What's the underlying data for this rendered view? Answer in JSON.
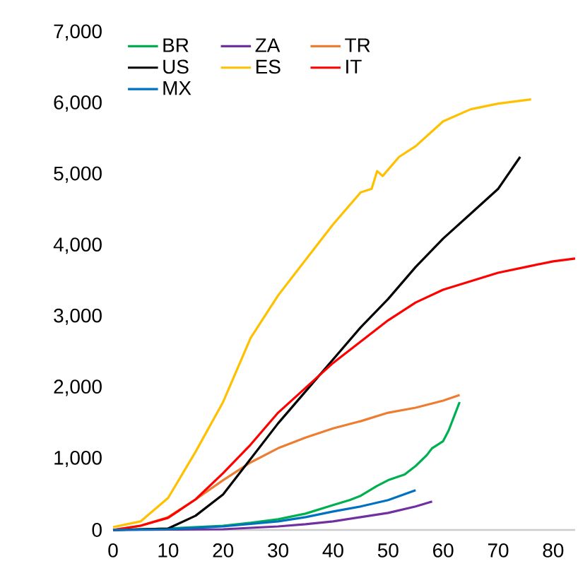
{
  "chart_data": {
    "type": "line",
    "xlim": [
      0,
      84
    ],
    "ylim": [
      0,
      7000
    ],
    "xticks": [
      0,
      10,
      20,
      30,
      40,
      50,
      60,
      70,
      80
    ],
    "yticks": [
      0,
      {
        "value": 1000,
        "label": "1,000"
      },
      {
        "value": 2000,
        "label": "2,000"
      },
      {
        "value": 3000,
        "label": "3,000"
      },
      {
        "value": 4000,
        "label": "4,000"
      },
      {
        "value": 5000,
        "label": "5,000"
      },
      {
        "value": 6000,
        "label": "6,000"
      },
      {
        "value": 7000,
        "label": "7,000"
      }
    ],
    "grid": false,
    "legend": "top left",
    "marker": "none",
    "line_style": "solid",
    "series": [
      {
        "name": "BR",
        "color": "#00b050",
        "x": [
          0,
          10,
          20,
          25,
          30,
          35,
          40,
          43,
          45,
          48,
          50,
          53,
          55,
          57,
          58,
          60,
          61,
          62,
          63
        ],
        "values": [
          0,
          20,
          60,
          100,
          150,
          230,
          350,
          420,
          480,
          620,
          700,
          780,
          900,
          1050,
          1150,
          1250,
          1400,
          1600,
          1800
        ]
      },
      {
        "name": "ZA",
        "color": "#7030a0",
        "x": [
          0,
          10,
          20,
          30,
          35,
          40,
          45,
          50,
          55,
          58
        ],
        "values": [
          0,
          5,
          10,
          50,
          80,
          120,
          180,
          240,
          330,
          400
        ]
      },
      {
        "name": "TR",
        "color": "#ed7d31",
        "x": [
          0,
          5,
          10,
          15,
          20,
          25,
          30,
          35,
          40,
          45,
          50,
          55,
          60,
          63
        ],
        "values": [
          0,
          60,
          180,
          430,
          700,
          950,
          1150,
          1300,
          1430,
          1530,
          1650,
          1720,
          1820,
          1900
        ]
      },
      {
        "name": "US",
        "color": "#000000",
        "x": [
          0,
          10,
          15,
          20,
          25,
          30,
          35,
          40,
          45,
          50,
          55,
          60,
          65,
          70,
          74
        ],
        "values": [
          0,
          20,
          200,
          500,
          1000,
          1500,
          1950,
          2400,
          2850,
          3250,
          3700,
          4100,
          4450,
          4800,
          5250
        ]
      },
      {
        "name": "ES",
        "color": "#ffc000",
        "x": [
          0,
          5,
          10,
          15,
          20,
          25,
          30,
          35,
          40,
          45,
          47,
          48,
          49,
          52,
          55,
          60,
          65,
          70,
          75,
          76
        ],
        "values": [
          40,
          120,
          450,
          1100,
          1800,
          2700,
          3300,
          3800,
          4300,
          4750,
          4800,
          5050,
          4980,
          5250,
          5400,
          5750,
          5920,
          6000,
          6050,
          6060
        ]
      },
      {
        "name": "IT",
        "color": "#ff0000",
        "x": [
          0,
          5,
          10,
          15,
          20,
          25,
          30,
          35,
          40,
          45,
          50,
          55,
          60,
          65,
          70,
          75,
          80,
          84
        ],
        "values": [
          0,
          60,
          170,
          430,
          800,
          1200,
          1650,
          2000,
          2350,
          2650,
          2950,
          3200,
          3380,
          3500,
          3620,
          3700,
          3780,
          3820
        ]
      },
      {
        "name": "MX",
        "color": "#0070c0",
        "x": [
          0,
          10,
          20,
          30,
          35,
          40,
          45,
          50,
          55
        ],
        "values": [
          0,
          10,
          50,
          120,
          180,
          260,
          330,
          420,
          560
        ]
      }
    ]
  }
}
